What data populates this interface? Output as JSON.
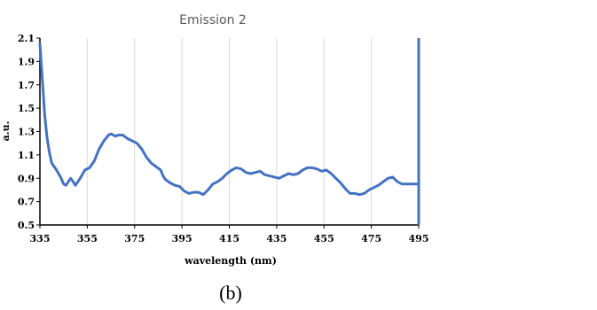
{
  "figure": {
    "caption": "(b)"
  },
  "chart_data": {
    "type": "line",
    "title": "Emission 2",
    "xlabel": "wavelength (nm)",
    "ylabel": "a.u.",
    "xlim": [
      335,
      495
    ],
    "ylim": [
      0.5,
      2.1
    ],
    "xticks": [
      "335",
      "355",
      "375",
      "395",
      "415",
      "435",
      "455",
      "475",
      "495"
    ],
    "yticks": [
      "0.5",
      "0.7",
      "0.9",
      "1.1",
      "1.3",
      "1.5",
      "1.7",
      "1.9",
      "2.1"
    ],
    "grid": "vertical",
    "series_color": "#4472C4",
    "series": [
      {
        "x": [
          335,
          336,
          337,
          338,
          339,
          340,
          342,
          344,
          345,
          346,
          347,
          348,
          349,
          350,
          352,
          354,
          356,
          358,
          360,
          362,
          364,
          365,
          366,
          367,
          368,
          370,
          372,
          374,
          376,
          378,
          380,
          382,
          384,
          386,
          387,
          388,
          390,
          392,
          394,
          396,
          398,
          400,
          402,
          404,
          406,
          408,
          410,
          412,
          414,
          416,
          418,
          420,
          422,
          424,
          426,
          428,
          430,
          432,
          434,
          436,
          438,
          440,
          442,
          444,
          446,
          448,
          450,
          452,
          454,
          456,
          458,
          460,
          462,
          464,
          466,
          468,
          470,
          472,
          474,
          476,
          478,
          480,
          482,
          484,
          486,
          488,
          490,
          492,
          494,
          495
        ],
        "y": [
          2.05,
          1.75,
          1.45,
          1.25,
          1.12,
          1.03,
          0.97,
          0.9,
          0.85,
          0.84,
          0.87,
          0.9,
          0.87,
          0.84,
          0.9,
          0.97,
          0.99,
          1.05,
          1.15,
          1.22,
          1.27,
          1.28,
          1.27,
          1.26,
          1.27,
          1.27,
          1.24,
          1.22,
          1.2,
          1.15,
          1.08,
          1.03,
          1.0,
          0.97,
          0.92,
          0.89,
          0.86,
          0.84,
          0.83,
          0.79,
          0.77,
          0.78,
          0.78,
          0.76,
          0.8,
          0.85,
          0.87,
          0.9,
          0.94,
          0.97,
          0.99,
          0.98,
          0.95,
          0.94,
          0.95,
          0.96,
          0.93,
          0.92,
          0.91,
          0.9,
          0.92,
          0.94,
          0.93,
          0.94,
          0.97,
          0.99,
          0.99,
          0.98,
          0.96,
          0.97,
          0.94,
          0.9,
          0.86,
          0.81,
          0.77,
          0.77,
          0.76,
          0.77,
          0.8,
          0.82,
          0.84,
          0.87,
          0.9,
          0.91,
          0.87,
          0.85,
          0.85,
          0.85,
          0.85,
          0.85
        ]
      }
    ]
  }
}
